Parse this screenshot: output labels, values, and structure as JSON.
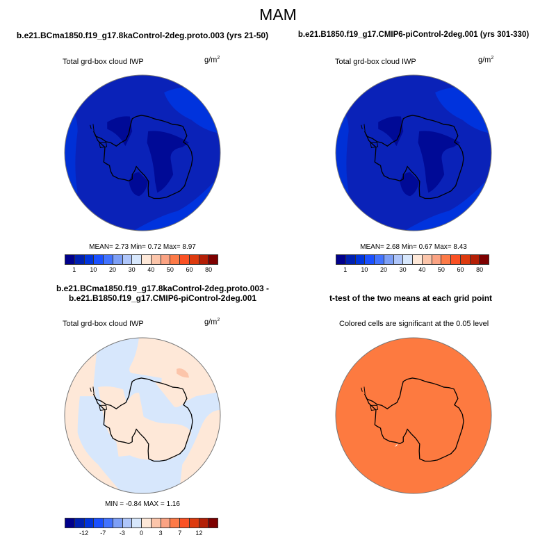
{
  "figure_title": "MAM",
  "palette": [
    "#00008b",
    "#0020b0",
    "#0034dc",
    "#1a50ff",
    "#4273ff",
    "#7d9ff6",
    "#afc6fa",
    "#d7e7fc",
    "#fee8d8",
    "#fcc5aa",
    "#fba383",
    "#fd7a47",
    "#fa5124",
    "#dd3a0e",
    "#b41f06",
    "#7d0000"
  ],
  "chart_data": [
    {
      "type": "heatmap",
      "title": "b.e21.BCma1850.f19_g17.8kaControl-2deg.proto.003 (yrs 21-50)",
      "subtitle": "Total grd-box cloud IWP",
      "units": "g/m",
      "units_exp": "2",
      "stats": "MEAN=   2.73  Min=   0.72  Max=   8.97",
      "colorbar_labels": [
        "1",
        "10",
        "20",
        "30",
        "40",
        "50",
        "60",
        "80"
      ]
    },
    {
      "type": "heatmap",
      "title": "b.e21.B1850.f19_g17.CMIP6-piControl-2deg.001 (yrs 301-330)",
      "subtitle": "Total grd-box cloud IWP",
      "units": "g/m",
      "units_exp": "2",
      "stats": "MEAN=   2.68  Min=   0.67  Max=   8.43",
      "colorbar_labels": [
        "1",
        "10",
        "20",
        "30",
        "40",
        "50",
        "60",
        "80"
      ]
    },
    {
      "type": "heatmap",
      "title": "b.e21.BCma1850.f19_g17.8kaControl-2deg.proto.003 - b.e21.B1850.f19_g17.CMIP6-piControl-2deg.001",
      "subtitle": "Total grd-box cloud IWP",
      "units": "g/m",
      "units_exp": "2",
      "stats": "MIN =  -0.84 MAX =   1.16",
      "colorbar_labels": [
        "-12",
        "-7",
        "-3",
        "0",
        "3",
        "7",
        "12"
      ]
    },
    {
      "type": "heatmap",
      "title": "t-test of the two means at each grid point",
      "subtitle": "Colored cells are significant at the 0.05 level",
      "fill_color": "#fd7a40"
    }
  ]
}
